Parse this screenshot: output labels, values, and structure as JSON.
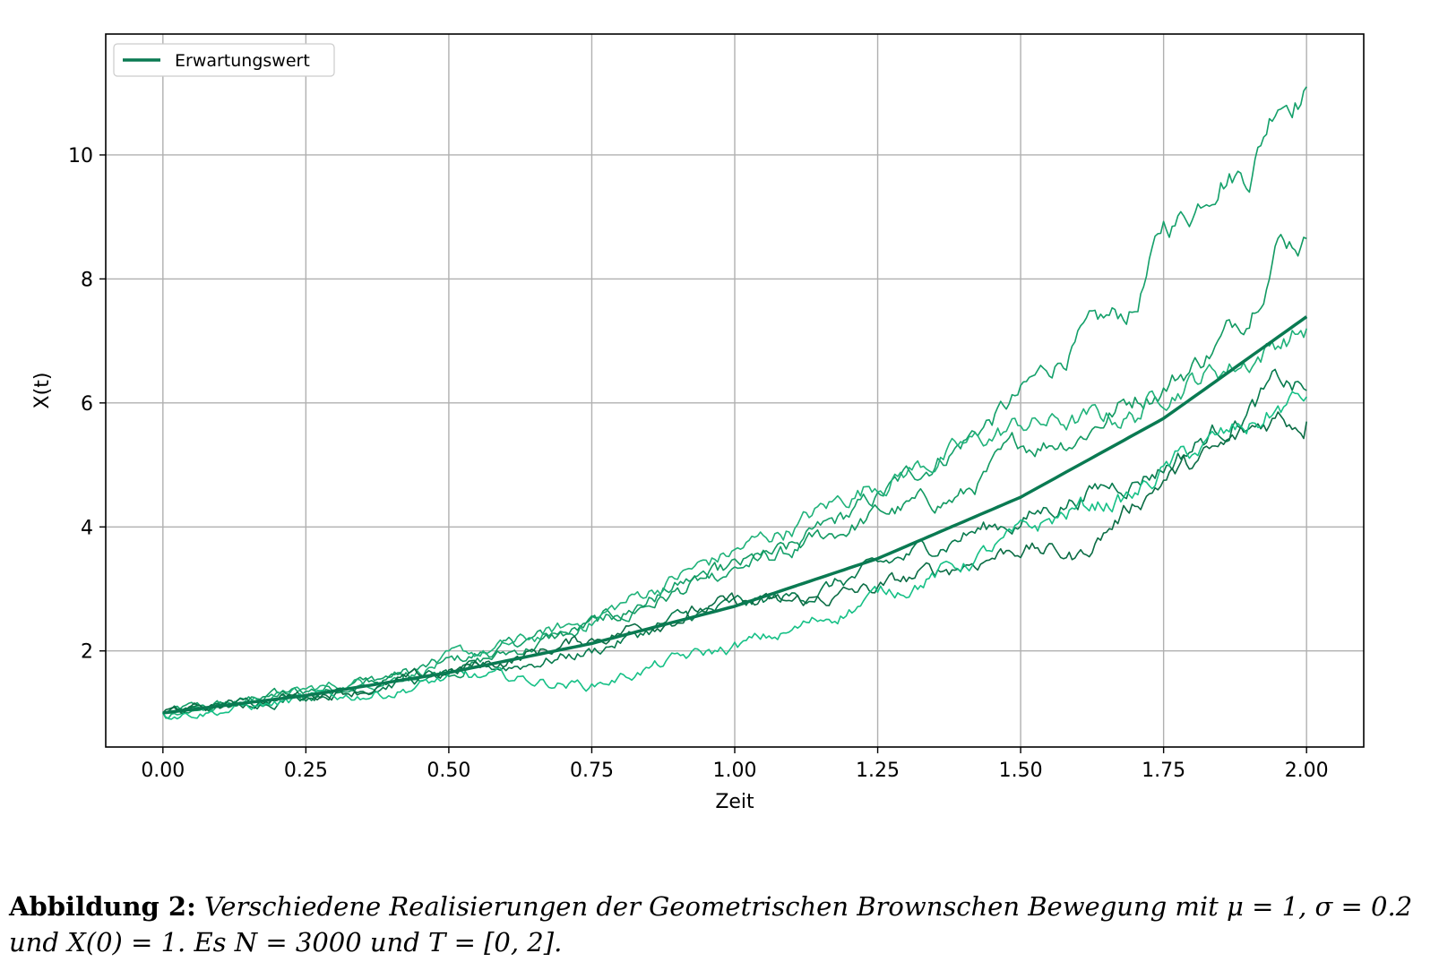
{
  "chart_data": {
    "type": "line",
    "xlabel": "Zeit",
    "ylabel": "X(t)",
    "xlim": [
      -0.1,
      2.1
    ],
    "ylim": [
      0.45,
      11.95
    ],
    "xticks": [
      0.0,
      0.25,
      0.5,
      0.75,
      1.0,
      1.25,
      1.5,
      1.75,
      2.0
    ],
    "xtick_labels": [
      "0.00",
      "0.25",
      "0.50",
      "0.75",
      "1.00",
      "1.25",
      "1.50",
      "1.75",
      "2.00"
    ],
    "yticks": [
      2,
      4,
      6,
      8,
      10
    ],
    "ytick_labels": [
      "2",
      "4",
      "6",
      "8",
      "10"
    ],
    "grid": true,
    "legend": {
      "position": "top-left",
      "entries": [
        "Erwartungswert"
      ]
    },
    "expected": {
      "name": "Erwartungswert",
      "color": "#0a7a52",
      "x": [
        0.0,
        0.25,
        0.5,
        0.75,
        1.0,
        1.25,
        1.5,
        1.75,
        2.0
      ],
      "y": [
        1.0,
        1.28,
        1.65,
        2.12,
        2.72,
        3.49,
        4.48,
        5.75,
        7.39
      ]
    },
    "paths": [
      {
        "color": "#14a06a",
        "x": [
          0.0,
          0.1,
          0.25,
          0.4,
          0.5,
          0.6,
          0.75,
          0.9,
          1.0,
          1.1,
          1.25,
          1.4,
          1.5,
          1.6,
          1.7,
          1.75,
          1.8,
          1.85,
          1.9,
          1.95,
          2.0
        ],
        "y": [
          1.0,
          1.12,
          1.35,
          1.6,
          1.8,
          2.05,
          2.45,
          3.05,
          3.35,
          3.6,
          4.45,
          5.4,
          6.1,
          7.0,
          7.5,
          8.8,
          9.1,
          9.8,
          9.75,
          11.0,
          11.1
        ]
      },
      {
        "color": "#129a62",
        "x": [
          0.0,
          0.1,
          0.25,
          0.4,
          0.5,
          0.6,
          0.75,
          0.9,
          1.0,
          1.1,
          1.25,
          1.4,
          1.5,
          1.6,
          1.7,
          1.75,
          1.8,
          1.85,
          1.9,
          1.95,
          2.0
        ],
        "y": [
          1.0,
          1.1,
          1.3,
          1.55,
          1.7,
          1.95,
          2.4,
          2.95,
          3.3,
          3.6,
          4.2,
          4.5,
          5.3,
          5.5,
          6.1,
          6.3,
          6.6,
          7.0,
          7.5,
          8.7,
          8.65
        ]
      },
      {
        "color": "#20b27a",
        "x": [
          0.0,
          0.1,
          0.25,
          0.4,
          0.5,
          0.6,
          0.75,
          0.9,
          1.0,
          1.1,
          1.25,
          1.4,
          1.5,
          1.6,
          1.7,
          1.75,
          1.8,
          1.85,
          1.9,
          1.95,
          2.0
        ],
        "y": [
          1.0,
          1.12,
          1.35,
          1.58,
          1.85,
          2.05,
          2.5,
          3.2,
          3.6,
          4.0,
          4.75,
          5.25,
          5.65,
          5.7,
          5.8,
          6.2,
          6.4,
          6.55,
          6.7,
          7.0,
          7.2
        ]
      },
      {
        "color": "#077a4d",
        "x": [
          0.0,
          0.1,
          0.25,
          0.4,
          0.5,
          0.6,
          0.75,
          0.9,
          1.0,
          1.1,
          1.25,
          1.4,
          1.5,
          1.6,
          1.7,
          1.75,
          1.8,
          1.85,
          1.9,
          1.95,
          2.0
        ],
        "y": [
          1.0,
          1.1,
          1.3,
          1.5,
          1.6,
          1.75,
          2.0,
          2.5,
          2.7,
          2.85,
          3.3,
          3.9,
          4.1,
          4.5,
          4.8,
          5.0,
          5.3,
          5.6,
          5.9,
          6.3,
          6.2
        ]
      },
      {
        "color": "#0b6d45",
        "x": [
          0.0,
          0.1,
          0.25,
          0.4,
          0.5,
          0.6,
          0.75,
          0.9,
          1.0,
          1.1,
          1.25,
          1.4,
          1.5,
          1.6,
          1.7,
          1.75,
          1.8,
          1.85,
          1.9,
          1.95,
          2.0
        ],
        "y": [
          1.0,
          1.1,
          1.3,
          1.45,
          1.65,
          1.85,
          2.2,
          2.6,
          2.75,
          2.75,
          3.0,
          3.4,
          3.7,
          3.5,
          4.4,
          4.8,
          5.0,
          5.2,
          5.5,
          5.8,
          5.7
        ]
      },
      {
        "color": "#16c086",
        "x": [
          0.0,
          0.1,
          0.25,
          0.4,
          0.5,
          0.6,
          0.75,
          0.9,
          1.0,
          1.1,
          1.25,
          1.4,
          1.5,
          1.6,
          1.7,
          1.75,
          1.8,
          1.85,
          1.9,
          1.95,
          2.0
        ],
        "y": [
          1.0,
          1.05,
          1.2,
          1.35,
          1.55,
          1.55,
          1.45,
          1.85,
          2.05,
          2.3,
          2.9,
          3.4,
          3.85,
          4.3,
          4.5,
          4.9,
          5.2,
          5.4,
          5.6,
          5.9,
          6.1
        ]
      }
    ]
  },
  "caption": {
    "lead": "Abbildung 2:",
    "body": "Verschiedene Realisierungen der Geometrischen Brownschen Bewegung mit μ = 1, σ = 0.2 und X(0) = 1. Es N = 3000 und T = [0, 2]."
  }
}
